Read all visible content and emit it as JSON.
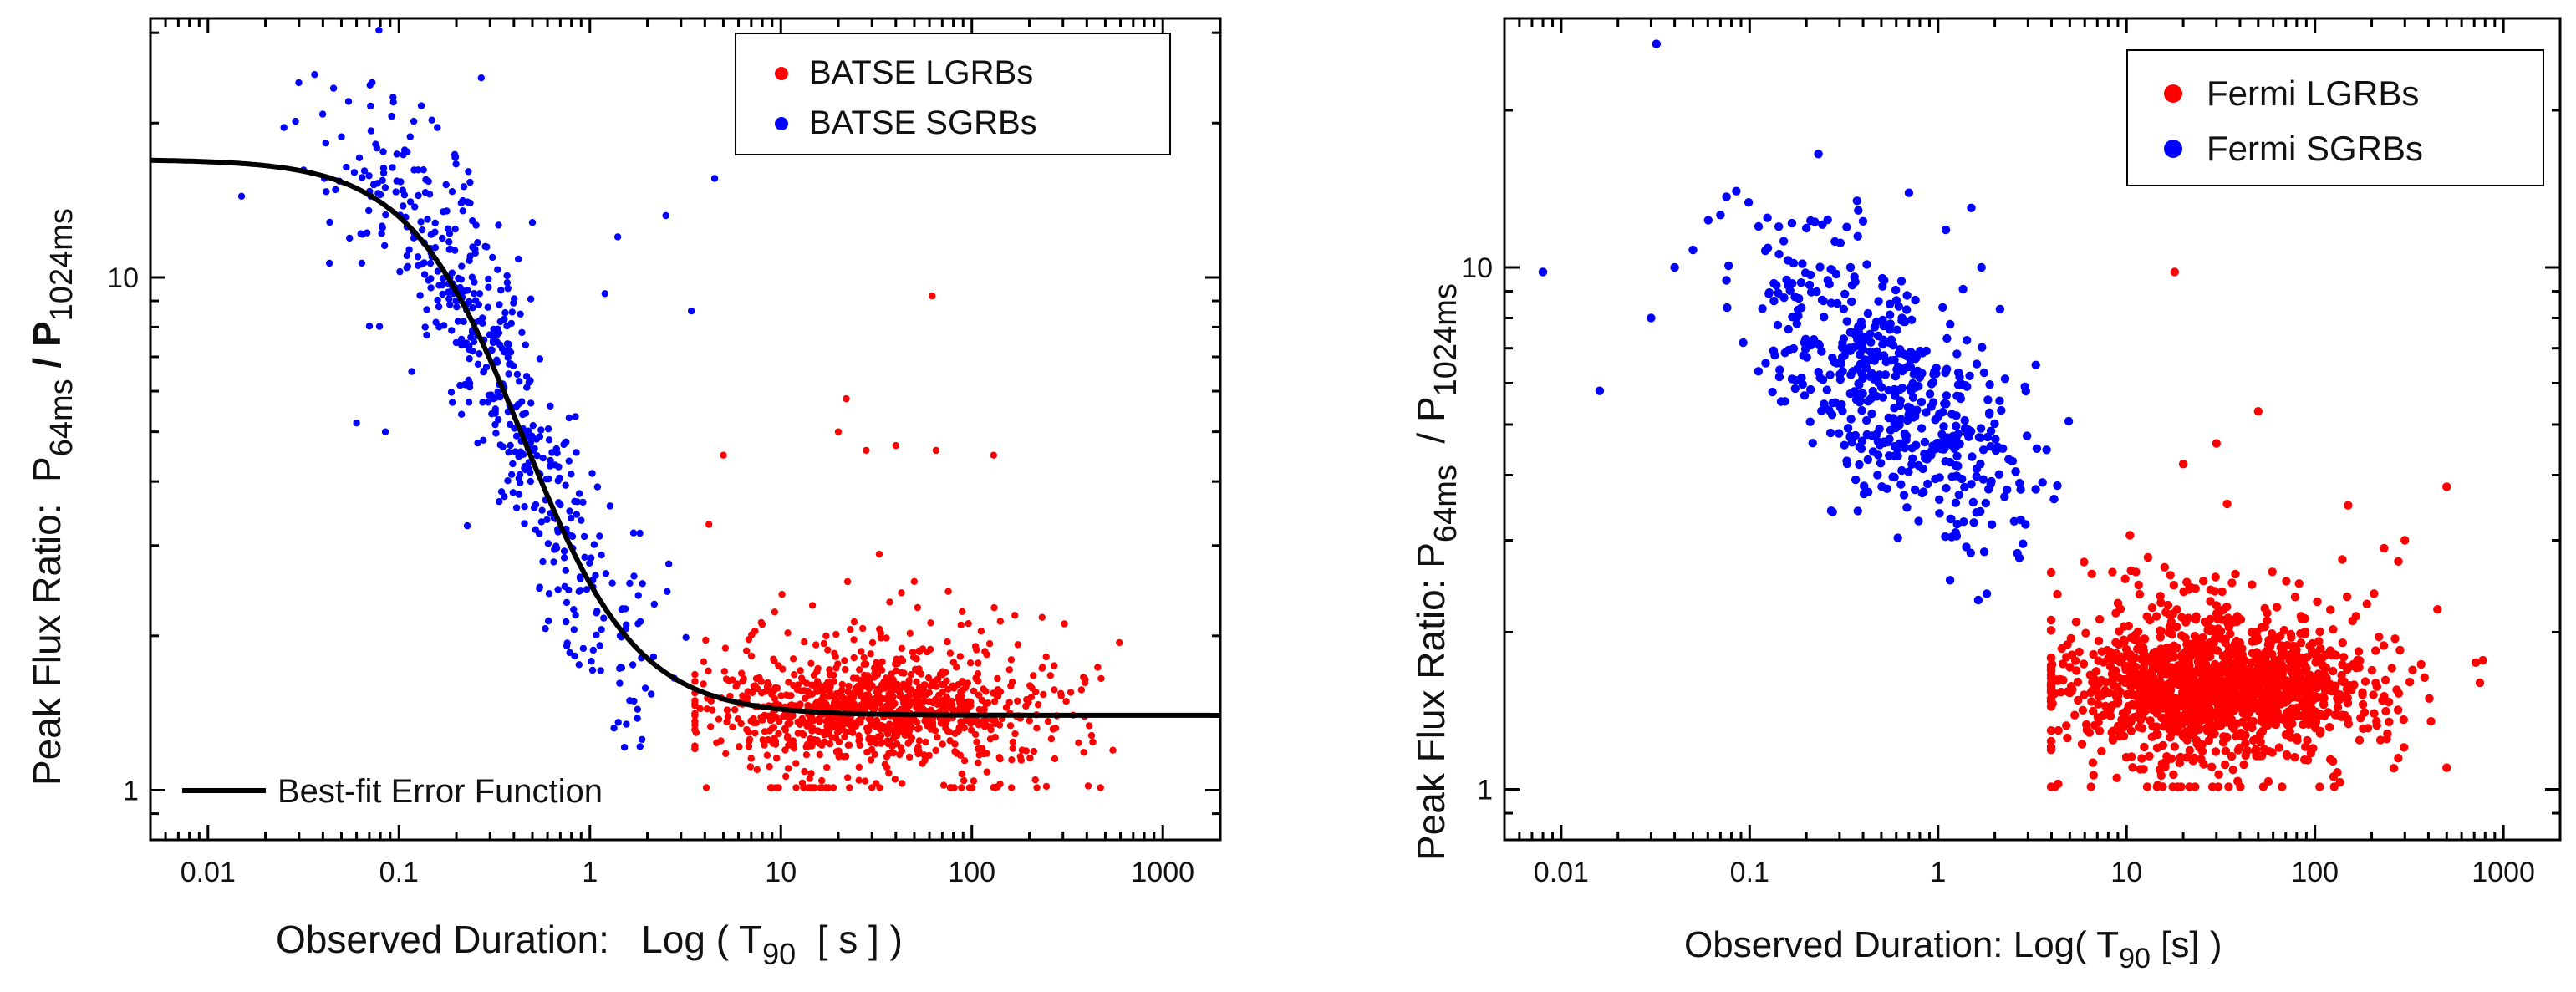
{
  "chart_data": [
    {
      "type": "scatter",
      "xscale": "log",
      "yscale": "log",
      "xlim": [
        0.005,
        2000
      ],
      "ylim": [
        0.8,
        32
      ],
      "x_ticks": [
        "0.01",
        "0.1",
        "1",
        "10",
        "100",
        "1000"
      ],
      "y_ticks": [
        "1",
        "10"
      ],
      "xlabel": {
        "prefix": "Observed Duration:   Log ( T",
        "sub": "90",
        "suffix": "  [ s ] )"
      },
      "ylabel": {
        "prefix": "Peak Flux Ratio:  P",
        "sub1": "64ms",
        "mid": " / P",
        "sub2": "1024ms"
      },
      "legend_position": "top-right",
      "series": [
        {
          "name": "BATSE LGRBs",
          "color": "#ff0000",
          "distribution": {
            "count": 1050,
            "log10_x_center": 1.5,
            "log10_x_spread": 0.45,
            "log10_x_min": 0.55,
            "log10_x_max": 2.8,
            "log10_y_center": 0.16,
            "log10_y_spread": 0.09,
            "log10_y_min": 0.0,
            "log10_y_max": 0.55
          },
          "outliers": [
            [
              62,
              9.2
            ],
            [
              22,
              5.8
            ],
            [
              28,
              4.6
            ],
            [
              40,
              4.7
            ],
            [
              65,
              4.6
            ],
            [
              130,
              4.5
            ],
            [
              20,
              5.0
            ],
            [
              5,
              4.5
            ],
            [
              4.2,
              3.3
            ]
          ]
        },
        {
          "name": "BATSE SGRBs",
          "color": "#0000ff",
          "distribution": {
            "count": 520,
            "log10_x_min": -1.65,
            "log10_x_max": 0.7,
            "log10_y_spread": 0.12
          },
          "outliers": [
            [
              0.27,
              24.5
            ],
            [
              0.025,
              19.6
            ],
            [
              0.05,
              18.8
            ],
            [
              0.12,
              16.2
            ],
            [
              4.5,
              15.6
            ],
            [
              0.08,
              14.5
            ],
            [
              0.5,
              12.8
            ],
            [
              1.4,
              12.0
            ],
            [
              2.5,
              13.2
            ],
            [
              1.2,
              9.3
            ],
            [
              3.4,
              8.6
            ],
            [
              0.06,
              5.2
            ],
            [
              0.085,
              5.0
            ],
            [
              0.015,
              14.4
            ]
          ]
        },
        {
          "name": "Best-fit Error Function",
          "type": "line",
          "color": "#000000",
          "fit": {
            "log10_y_low": 0.146,
            "log10_y_high": 1.23,
            "log10_x_center": -0.35,
            "width": 0.78
          }
        }
      ]
    },
    {
      "type": "scatter",
      "xscale": "log",
      "yscale": "log",
      "xlim": [
        0.005,
        2000
      ],
      "ylim": [
        0.8,
        30
      ],
      "x_ticks": [
        "0.01",
        "0.1",
        "1",
        "10",
        "100",
        "1000"
      ],
      "y_ticks": [
        "1",
        "10"
      ],
      "xlabel": {
        "prefix": "Observed Duration: Log( T",
        "sub": "90",
        "suffix": " [s] )"
      },
      "ylabel": {
        "prefix": "Peak Flux Ratio: P",
        "sub1": "64ms",
        "mid": "  / P",
        "sub2": "1024ms"
      },
      "legend_position": "top-right",
      "series": [
        {
          "name": "Fermi LGRBs",
          "color": "#ff0000",
          "distribution": {
            "count": 1500,
            "log10_x_center": 1.45,
            "log10_x_spread": 0.42,
            "log10_x_min": 0.6,
            "log10_x_max": 2.9,
            "log10_y_center": 0.2,
            "log10_y_spread": 0.1,
            "log10_y_min": 0.0,
            "log10_y_max": 0.62
          },
          "outliers": [
            [
              18,
              9.8
            ],
            [
              50,
              5.3
            ],
            [
              500,
              3.8
            ],
            [
              30,
              4.6
            ],
            [
              20,
              4.2
            ],
            [
              150,
              3.5
            ],
            [
              300,
              3.0
            ],
            [
              750,
              1.6
            ],
            [
              500,
              1.1
            ]
          ]
        },
        {
          "name": "Fermi SGRBs",
          "color": "#0000ff",
          "distribution": {
            "count": 540,
            "log10_x_min": -1.3,
            "log10_x_max": 0.8,
            "log10_y_spread": 0.11
          },
          "outliers": [
            [
              0.032,
              26.8
            ],
            [
              0.008,
              9.8
            ],
            [
              0.016,
              5.8
            ],
            [
              0.03,
              8.0
            ],
            [
              0.085,
              14.0
            ],
            [
              0.7,
              13.9
            ],
            [
              1.7,
              10.0
            ],
            [
              1.1,
              11.8
            ],
            [
              1.5,
              13.0
            ],
            [
              3.3,
              6.5
            ],
            [
              0.07,
              12.6
            ],
            [
              0.04,
              10.0
            ],
            [
              0.05,
              10.8
            ]
          ]
        }
      ]
    }
  ]
}
